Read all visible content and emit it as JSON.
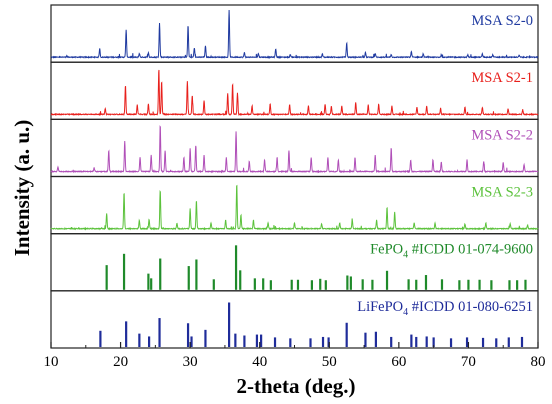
{
  "chart_data": {
    "type": "line",
    "title": "",
    "xlabel": "2-theta (deg.)",
    "ylabel": "Intensity (a. u.)",
    "xlim": [
      10,
      80
    ],
    "xticks": [
      10,
      20,
      30,
      40,
      50,
      60,
      70,
      80
    ],
    "x_tick_labels": [
      "10",
      "20",
      "30",
      "40",
      "50",
      "60",
      "70",
      "80"
    ],
    "minor_tick_step": 5,
    "y_ticks_shown": false,
    "stacked_panels": true,
    "panel_labels": [
      {
        "text": "MSA S2-0",
        "color": "#1f3aa0"
      },
      {
        "text": "MSA S2-1",
        "color": "#e8201c"
      },
      {
        "text": "MSA S2-2",
        "color": "#b04fb8"
      },
      {
        "text": "MSA S2-3",
        "color": "#5cc23c"
      },
      {
        "parts": [
          {
            "t": "FePO"
          },
          {
            "t": "4",
            "sub": true
          },
          {
            "t": " #ICDD 01-074-9600"
          }
        ],
        "color": "#1f8a2a"
      },
      {
        "parts": [
          {
            "t": "LiFePO"
          },
          {
            "t": "4",
            "sub": true
          },
          {
            "t": " #ICDD 01-080-6251"
          }
        ],
        "color": "#1f2c9a"
      }
    ],
    "series": [
      {
        "name": "MSA S2-0",
        "kind": "pattern",
        "color": "#1f3aa0",
        "panel": 0,
        "peaks": [
          [
            17.0,
            0.18
          ],
          [
            20.8,
            0.58
          ],
          [
            22.7,
            0.08
          ],
          [
            24.0,
            0.1
          ],
          [
            25.6,
            0.72
          ],
          [
            29.7,
            0.68
          ],
          [
            30.6,
            0.2
          ],
          [
            32.2,
            0.24
          ],
          [
            35.6,
            1.0
          ],
          [
            37.8,
            0.1
          ],
          [
            39.8,
            0.08
          ],
          [
            42.3,
            0.18
          ],
          [
            44.4,
            0.06
          ],
          [
            49.0,
            0.07
          ],
          [
            52.5,
            0.3
          ],
          [
            55.2,
            0.1
          ],
          [
            56.6,
            0.08
          ],
          [
            58.9,
            0.06
          ],
          [
            61.8,
            0.12
          ],
          [
            63.5,
            0.07
          ],
          [
            66.1,
            0.05
          ],
          [
            69.9,
            0.05
          ],
          [
            72.0,
            0.07
          ],
          [
            73.5,
            0.05
          ],
          [
            77.3,
            0.04
          ]
        ]
      },
      {
        "name": "MSA S2-1",
        "kind": "pattern",
        "color": "#e8201c",
        "panel": 1,
        "peaks": [
          [
            17.8,
            0.12
          ],
          [
            20.7,
            0.62
          ],
          [
            22.4,
            0.2
          ],
          [
            24.0,
            0.22
          ],
          [
            25.5,
            0.95
          ],
          [
            25.9,
            0.7
          ],
          [
            29.6,
            0.7
          ],
          [
            30.3,
            0.4
          ],
          [
            32.0,
            0.3
          ],
          [
            35.4,
            0.45
          ],
          [
            36.1,
            0.65
          ],
          [
            36.8,
            0.45
          ],
          [
            38.9,
            0.18
          ],
          [
            41.5,
            0.22
          ],
          [
            44.3,
            0.2
          ],
          [
            47.0,
            0.18
          ],
          [
            49.4,
            0.22
          ],
          [
            50.3,
            0.18
          ],
          [
            51.8,
            0.18
          ],
          [
            53.8,
            0.25
          ],
          [
            55.6,
            0.2
          ],
          [
            57.1,
            0.22
          ],
          [
            59.0,
            0.18
          ],
          [
            62.6,
            0.15
          ],
          [
            64.0,
            0.17
          ],
          [
            66.0,
            0.13
          ],
          [
            69.5,
            0.15
          ],
          [
            72.0,
            0.15
          ],
          [
            75.7,
            0.12
          ],
          [
            77.8,
            0.1
          ]
        ]
      },
      {
        "name": "MSA S2-2",
        "kind": "pattern",
        "color": "#b04fb8",
        "panel": 2,
        "peaks": [
          [
            11.0,
            0.1
          ],
          [
            16.2,
            0.08
          ],
          [
            18.3,
            0.45
          ],
          [
            20.6,
            0.65
          ],
          [
            22.8,
            0.3
          ],
          [
            24.4,
            0.35
          ],
          [
            25.7,
            1.0
          ],
          [
            26.4,
            0.45
          ],
          [
            29.1,
            0.3
          ],
          [
            30.0,
            0.5
          ],
          [
            30.8,
            0.55
          ],
          [
            32.0,
            0.35
          ],
          [
            35.2,
            0.3
          ],
          [
            36.6,
            0.85
          ],
          [
            38.5,
            0.22
          ],
          [
            40.7,
            0.25
          ],
          [
            42.5,
            0.3
          ],
          [
            44.2,
            0.45
          ],
          [
            47.4,
            0.3
          ],
          [
            49.8,
            0.3
          ],
          [
            51.3,
            0.25
          ],
          [
            53.7,
            0.3
          ],
          [
            56.6,
            0.35
          ],
          [
            58.9,
            0.5
          ],
          [
            61.7,
            0.25
          ],
          [
            64.9,
            0.25
          ],
          [
            66.1,
            0.2
          ],
          [
            69.8,
            0.25
          ],
          [
            72.2,
            0.22
          ],
          [
            75.0,
            0.2
          ],
          [
            78.0,
            0.15
          ]
        ]
      },
      {
        "name": "MSA S2-3",
        "kind": "pattern",
        "color": "#5cc23c",
        "panel": 3,
        "peaks": [
          [
            18.0,
            0.32
          ],
          [
            20.5,
            0.78
          ],
          [
            22.7,
            0.18
          ],
          [
            24.1,
            0.2
          ],
          [
            25.7,
            0.82
          ],
          [
            28.1,
            0.12
          ],
          [
            30.0,
            0.42
          ],
          [
            30.9,
            0.6
          ],
          [
            33.0,
            0.12
          ],
          [
            35.1,
            0.18
          ],
          [
            36.7,
            0.95
          ],
          [
            37.3,
            0.3
          ],
          [
            39.1,
            0.18
          ],
          [
            41.2,
            0.12
          ],
          [
            45.0,
            0.12
          ],
          [
            48.9,
            0.1
          ],
          [
            51.5,
            0.12
          ],
          [
            53.3,
            0.18
          ],
          [
            56.8,
            0.18
          ],
          [
            58.3,
            0.45
          ],
          [
            59.4,
            0.35
          ],
          [
            62.2,
            0.12
          ],
          [
            65.2,
            0.12
          ],
          [
            69.5,
            0.1
          ],
          [
            72.5,
            0.12
          ],
          [
            76.0,
            0.1
          ],
          [
            78.5,
            0.08
          ]
        ]
      },
      {
        "name": "FePO4 #ICDD 01-074-9600",
        "kind": "sticks",
        "color": "#1f8a2a",
        "panel": 4,
        "peaks": [
          [
            18.0,
            0.46
          ],
          [
            20.5,
            0.7
          ],
          [
            24.0,
            0.28
          ],
          [
            24.4,
            0.18
          ],
          [
            25.7,
            0.6
          ],
          [
            29.8,
            0.44
          ],
          [
            30.9,
            0.58
          ],
          [
            33.4,
            0.16
          ],
          [
            36.6,
            0.88
          ],
          [
            37.2,
            0.35
          ],
          [
            39.3,
            0.18
          ],
          [
            40.5,
            0.18
          ],
          [
            41.6,
            0.14
          ],
          [
            44.6,
            0.15
          ],
          [
            45.5,
            0.15
          ],
          [
            47.5,
            0.14
          ],
          [
            48.7,
            0.17
          ],
          [
            49.5,
            0.14
          ],
          [
            52.6,
            0.24
          ],
          [
            53.1,
            0.22
          ],
          [
            54.8,
            0.16
          ],
          [
            56.2,
            0.15
          ],
          [
            58.3,
            0.34
          ],
          [
            61.4,
            0.16
          ],
          [
            62.5,
            0.15
          ],
          [
            63.9,
            0.25
          ],
          [
            66.2,
            0.16
          ],
          [
            68.7,
            0.14
          ],
          [
            70.0,
            0.15
          ],
          [
            71.6,
            0.15
          ],
          [
            73.3,
            0.14
          ],
          [
            75.9,
            0.14
          ],
          [
            77.0,
            0.14
          ],
          [
            78.2,
            0.15
          ]
        ]
      },
      {
        "name": "LiFePO4 #ICDD 01-080-6251",
        "kind": "sticks",
        "color": "#1f2c9a",
        "panel": 5,
        "peaks": [
          [
            17.1,
            0.28
          ],
          [
            20.8,
            0.48
          ],
          [
            22.7,
            0.22
          ],
          [
            24.1,
            0.16
          ],
          [
            25.6,
            0.55
          ],
          [
            29.7,
            0.44
          ],
          [
            30.2,
            0.16
          ],
          [
            32.2,
            0.3
          ],
          [
            35.6,
            0.88
          ],
          [
            36.5,
            0.22
          ],
          [
            37.8,
            0.18
          ],
          [
            39.6,
            0.2
          ],
          [
            40.2,
            0.2
          ],
          [
            42.2,
            0.14
          ],
          [
            44.4,
            0.12
          ],
          [
            47.3,
            0.12
          ],
          [
            49.1,
            0.15
          ],
          [
            49.9,
            0.14
          ],
          [
            52.5,
            0.45
          ],
          [
            55.2,
            0.24
          ],
          [
            56.7,
            0.26
          ],
          [
            58.9,
            0.15
          ],
          [
            61.8,
            0.2
          ],
          [
            62.5,
            0.15
          ],
          [
            64.0,
            0.16
          ],
          [
            65.0,
            0.14
          ],
          [
            67.5,
            0.12
          ],
          [
            69.8,
            0.14
          ],
          [
            72.1,
            0.13
          ],
          [
            74.0,
            0.12
          ],
          [
            75.8,
            0.14
          ],
          [
            77.7,
            0.15
          ]
        ]
      }
    ]
  }
}
